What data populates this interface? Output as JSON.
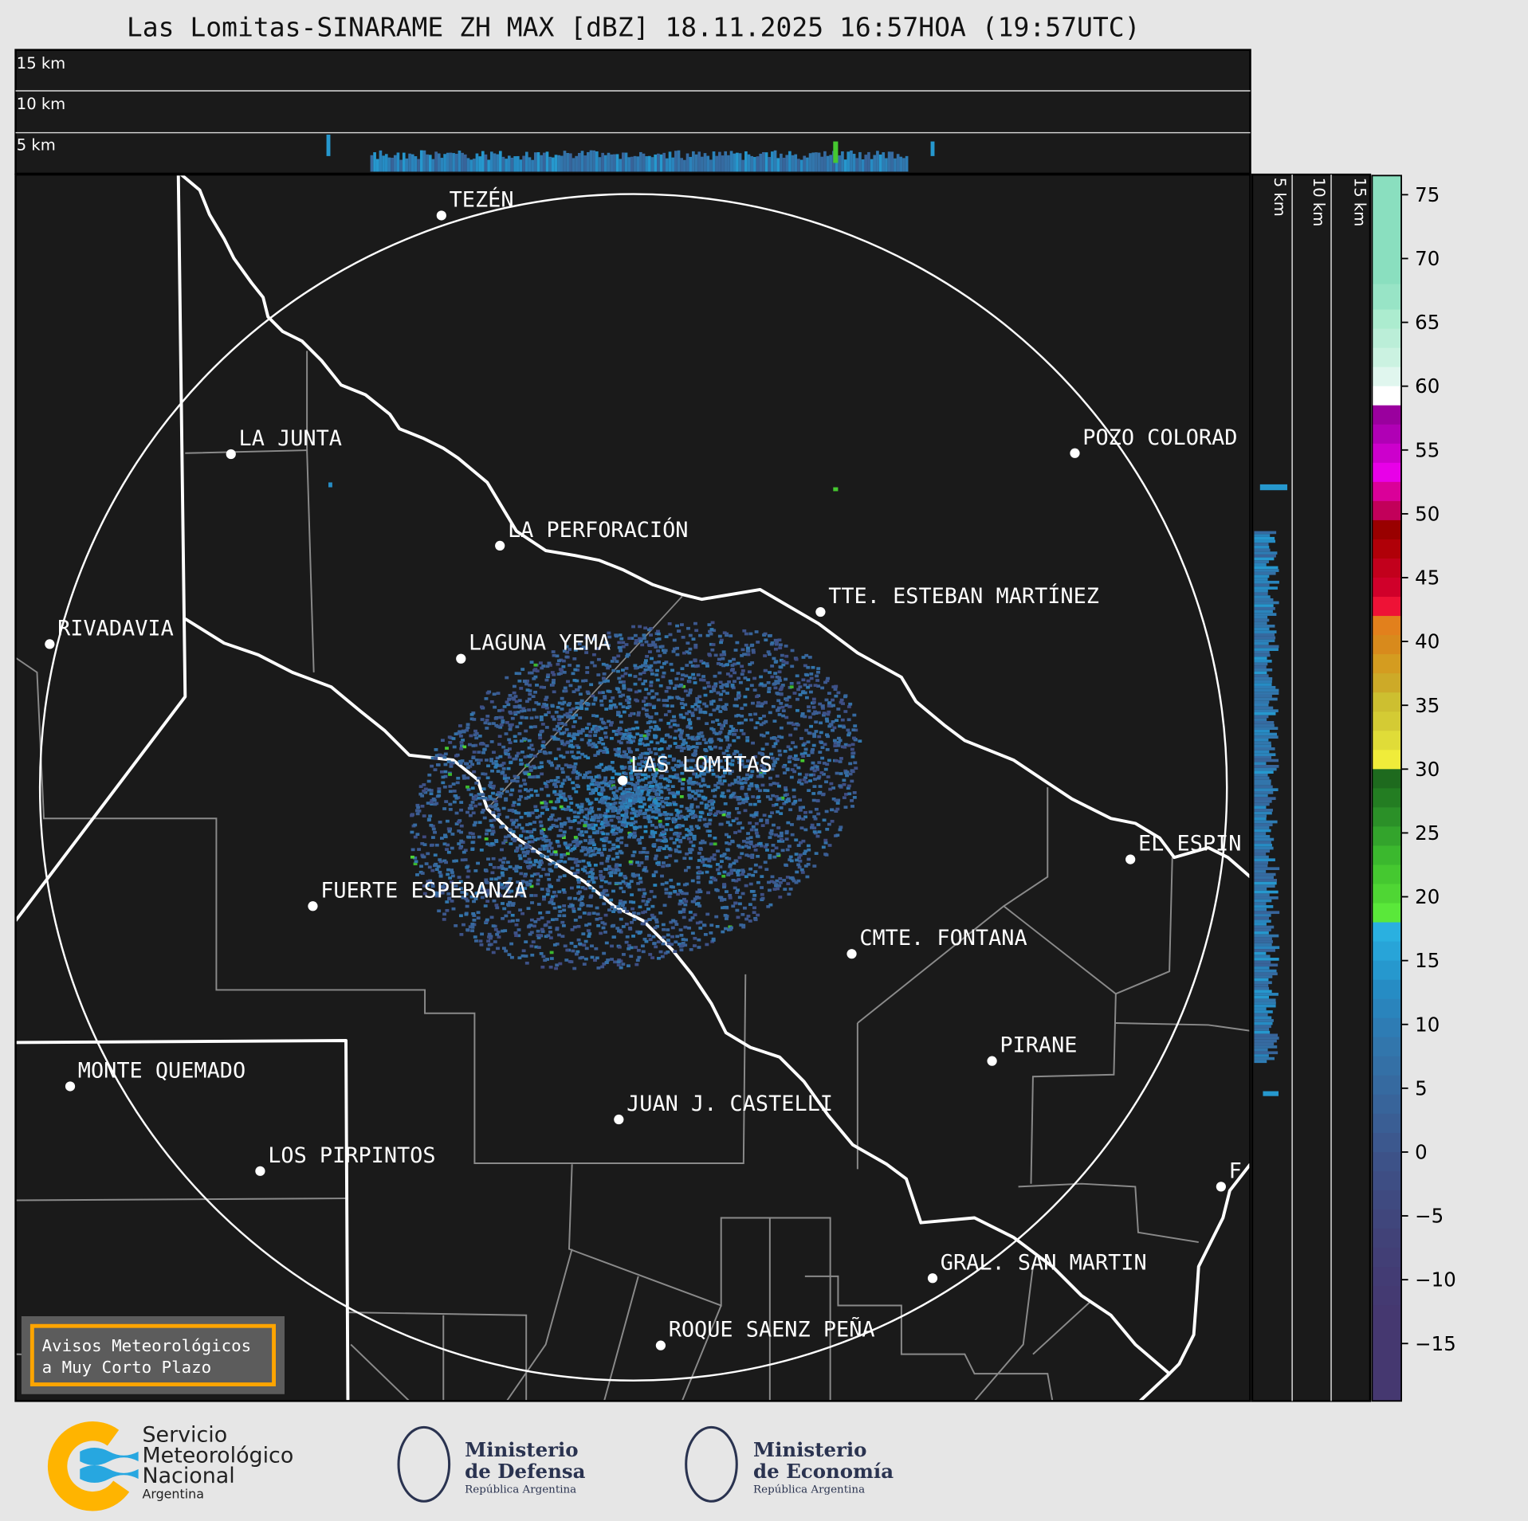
{
  "title": "Las Lomitas-SINARAME ZH MAX [dBZ] 18.11.2025 16:57HOA (19:57UTC)",
  "top_panel": {
    "height_labels": [
      "15 km",
      "10 km",
      "5 km"
    ]
  },
  "side_panel": {
    "height_labels": [
      "5 km",
      "10 km",
      "15 km"
    ]
  },
  "colorbar": {
    "units": "dBZ",
    "range": [
      -19.5,
      76.5
    ],
    "tick_labels": [
      "75",
      "70",
      "65",
      "60",
      "55",
      "50",
      "45",
      "40",
      "35",
      "30",
      "25",
      "20",
      "15",
      "10",
      "5",
      "0",
      "−5",
      "−10",
      "−15"
    ],
    "tick_values": [
      75,
      70,
      65,
      60,
      55,
      50,
      45,
      40,
      35,
      30,
      25,
      20,
      15,
      10,
      5,
      0,
      -5,
      -10,
      -15
    ],
    "bands": [
      {
        "from": 68,
        "to": 76.5,
        "color": "#8adfbf"
      },
      {
        "from": 66,
        "to": 68,
        "color": "#98e4c6"
      },
      {
        "from": 64.5,
        "to": 66,
        "color": "#aceccf"
      },
      {
        "from": 63,
        "to": 64.5,
        "color": "#bbeed8"
      },
      {
        "from": 61.5,
        "to": 63,
        "color": "#cbf2e1"
      },
      {
        "from": 60,
        "to": 61.5,
        "color": "#e0f6ee"
      },
      {
        "from": 58.5,
        "to": 60,
        "color": "#ffffff"
      },
      {
        "from": 57,
        "to": 58.5,
        "color": "#9a009e"
      },
      {
        "from": 55.5,
        "to": 57,
        "color": "#b000b5"
      },
      {
        "from": 54,
        "to": 55.5,
        "color": "#cc00cc"
      },
      {
        "from": 52.5,
        "to": 54,
        "color": "#e800e8"
      },
      {
        "from": 51,
        "to": 52.5,
        "color": "#da0099"
      },
      {
        "from": 49.5,
        "to": 51,
        "color": "#c2005a"
      },
      {
        "from": 48,
        "to": 49.5,
        "color": "#990000"
      },
      {
        "from": 46.5,
        "to": 48,
        "color": "#b00008"
      },
      {
        "from": 45,
        "to": 46.5,
        "color": "#c2001c"
      },
      {
        "from": 43.5,
        "to": 45,
        "color": "#d0002a"
      },
      {
        "from": 42,
        "to": 43.5,
        "color": "#ee1236"
      },
      {
        "from": 40.5,
        "to": 42,
        "color": "#e2801c"
      },
      {
        "from": 39,
        "to": 40.5,
        "color": "#d88a1c"
      },
      {
        "from": 37.5,
        "to": 39,
        "color": "#d49c20"
      },
      {
        "from": 36,
        "to": 37.5,
        "color": "#cdaa28"
      },
      {
        "from": 34.5,
        "to": 36,
        "color": "#cdbf30"
      },
      {
        "from": 33,
        "to": 34.5,
        "color": "#d4cb34"
      },
      {
        "from": 31.5,
        "to": 33,
        "color": "#e0dc38"
      },
      {
        "from": 30,
        "to": 31.5,
        "color": "#f0ec3a"
      },
      {
        "from": 28.5,
        "to": 30,
        "color": "#1e6a1e"
      },
      {
        "from": 27,
        "to": 28.5,
        "color": "#237d22"
      },
      {
        "from": 25.5,
        "to": 27,
        "color": "#2b9028"
      },
      {
        "from": 24,
        "to": 25.5,
        "color": "#33a42c"
      },
      {
        "from": 22.5,
        "to": 24,
        "color": "#3bb82e"
      },
      {
        "from": 21,
        "to": 22.5,
        "color": "#45c830"
      },
      {
        "from": 19.5,
        "to": 21,
        "color": "#4fd634"
      },
      {
        "from": 18,
        "to": 19.5,
        "color": "#5ae83a"
      },
      {
        "from": 16.5,
        "to": 18,
        "color": "#2ab0e0"
      },
      {
        "from": 15,
        "to": 16.5,
        "color": "#28a4d8"
      },
      {
        "from": 13.5,
        "to": 15,
        "color": "#2698ce"
      },
      {
        "from": 12,
        "to": 13.5,
        "color": "#268cc4"
      },
      {
        "from": 10.5,
        "to": 12,
        "color": "#2a84bc"
      },
      {
        "from": 9,
        "to": 10.5,
        "color": "#2e7cb4"
      },
      {
        "from": 7.5,
        "to": 9,
        "color": "#3276ac"
      },
      {
        "from": 6,
        "to": 7.5,
        "color": "#3470a6"
      },
      {
        "from": 4.5,
        "to": 6,
        "color": "#366aa0"
      },
      {
        "from": 3,
        "to": 4.5,
        "color": "#38649a"
      },
      {
        "from": 1.5,
        "to": 3,
        "color": "#3a5e94"
      },
      {
        "from": 0,
        "to": 1.5,
        "color": "#3c588e"
      },
      {
        "from": -1.5,
        "to": 0,
        "color": "#3d5288"
      },
      {
        "from": -3,
        "to": -1.5,
        "color": "#3e4e84"
      },
      {
        "from": -4.5,
        "to": -3,
        "color": "#3f4a80"
      },
      {
        "from": -6,
        "to": -4.5,
        "color": "#40467c"
      },
      {
        "from": -7.5,
        "to": -6,
        "color": "#414278"
      },
      {
        "from": -9,
        "to": -7.5,
        "color": "#423f76"
      },
      {
        "from": -10.5,
        "to": -9,
        "color": "#433c74"
      },
      {
        "from": -12,
        "to": -10.5,
        "color": "#443a72"
      },
      {
        "from": -19.5,
        "to": -12,
        "color": "#453870"
      }
    ]
  },
  "map": {
    "background": "#1a1a1a",
    "radar_site": "LAS LOMITAS",
    "cities": [
      {
        "name": "TEZÉN"
      },
      {
        "name": "LA JUNTA"
      },
      {
        "name": "POZO COLORAD"
      },
      {
        "name": "LA PERFORACIÓN"
      },
      {
        "name": "TTE. ESTEBAN MARTÍNEZ"
      },
      {
        "name": "RIVADAVIA"
      },
      {
        "name": "LAGUNA YEMA"
      },
      {
        "name": "LAS LOMITAS"
      },
      {
        "name": "EL ESPIN"
      },
      {
        "name": "FUERTE ESPERANZA"
      },
      {
        "name": "CMTE. FONTANA"
      },
      {
        "name": "PIRANE"
      },
      {
        "name": "MONTE QUEMADO"
      },
      {
        "name": "JUAN J. CASTELLI"
      },
      {
        "name": "LOS PIRPINTOS"
      },
      {
        "name": "F"
      },
      {
        "name": "GRAL. SAN MARTIN"
      },
      {
        "name": "ROQUE SAENZ PEÑA"
      }
    ],
    "warning_box": {
      "line1": "Avisos Meteorológicos",
      "line2": "a Muy Corto Plazo",
      "border_color": "#ffa500"
    }
  },
  "footer": {
    "smn": {
      "line1": "Servicio",
      "line2": "Meteorológico",
      "line3": "Nacional",
      "line4": "Argentina",
      "colors": [
        "#ffb400",
        "#27a7e0"
      ]
    },
    "defensa": {
      "line1": "Ministerio",
      "line2": "de Defensa",
      "line3": "República Argentina"
    },
    "economia": {
      "line1": "Ministerio",
      "line2": "de Economía",
      "line3": "República Argentina"
    }
  }
}
